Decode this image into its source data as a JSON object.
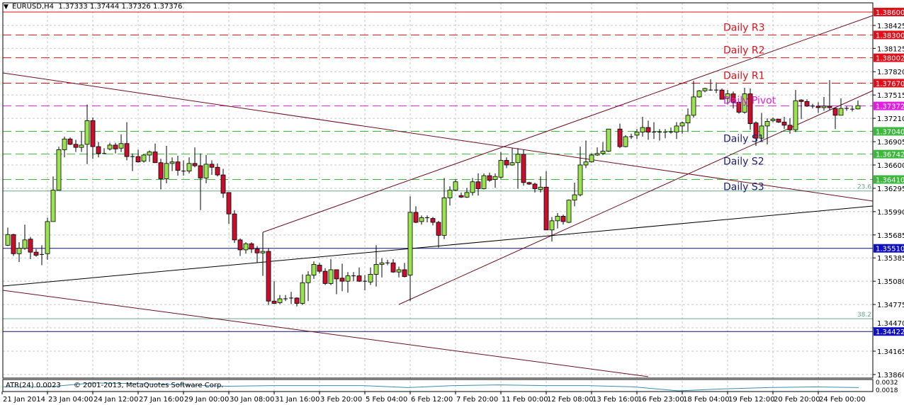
{
  "header": {
    "symbol": "EURUSD,H4",
    "ohlc": "1.37333 1.37444 1.37326 1.37376"
  },
  "indicator": {
    "label": "ATR(24) 0.0023",
    "copyright": "© 2001-2013, MetaQuotes Software Corp.",
    "axis_max": "0.0032",
    "axis_min": "0.0018"
  },
  "colors": {
    "bull": "#9be34f",
    "bear": "#c8102e",
    "resistance": "#e0101a",
    "pivot": "#e020e0",
    "support": "#3cb83c",
    "horizontal": "#1010c0",
    "trendline": "#6b1020"
  },
  "chart_data": {
    "type": "candlestick",
    "title": "EURUSD,H4",
    "ylim": [
      1.3386,
      1.386
    ],
    "grid": true,
    "y_ticks": [
      "1.38425",
      "1.38125",
      "1.37820",
      "1.37515",
      "1.37210",
      "1.36905",
      "1.36600",
      "1.36295",
      "1.35990",
      "1.35685",
      "1.35385",
      "1.35080",
      "1.34775",
      "1.34470",
      "1.34165",
      "1.33860"
    ],
    "x_ticks": [
      "21 Jan 2014",
      "23 Jan 04:00",
      "24 Jan 12:00",
      "27 Jan 16:00",
      "29 Jan 00:00",
      "30 Jan 08:00",
      "31 Jan 16:00",
      "3 Feb 20:00",
      "5 Feb 04:00",
      "6 Feb 12:00",
      "7 Feb 20:00",
      "11 Feb 00:00",
      "12 Feb 08:00",
      "13 Feb 16:00",
      "16 Feb 23:00",
      "18 Feb 04:00",
      "19 Feb 12:00",
      "20 Feb 20:00",
      "24 Feb 00:00"
    ],
    "levels": [
      {
        "price": "1.38600",
        "kind": "resistance",
        "style": "solid"
      },
      {
        "price": "1.38300",
        "kind": "resistance",
        "style": "dashed",
        "label": "Daily R3"
      },
      {
        "price": "1.38002",
        "kind": "resistance",
        "style": "dashed",
        "label": "Daily R2"
      },
      {
        "price": "1.37670",
        "kind": "resistance",
        "style": "dashed",
        "label": "Daily R1"
      },
      {
        "price": "1.37372",
        "kind": "pivot",
        "style": "dashed",
        "label": "Daily Pivot"
      },
      {
        "price": "1.37040",
        "kind": "support",
        "style": "dashed",
        "label": "Daily S1"
      },
      {
        "price": "1.36742",
        "kind": "support",
        "style": "dashed",
        "label": "Daily S2"
      },
      {
        "price": "1.36410",
        "kind": "support",
        "style": "dashed",
        "label": "Daily S3"
      },
      {
        "price": "1.35510",
        "kind": "horizontal",
        "style": "solid"
      },
      {
        "price": "1.34422",
        "kind": "horizontal",
        "style": "solid"
      }
    ],
    "fibo": [
      {
        "label": "23.6",
        "price": 1.3626
      },
      {
        "label": "38.2",
        "price": 1.3459
      }
    ],
    "candles": [
      [
        1.3555,
        1.3578,
        1.3554,
        1.3569
      ],
      [
        1.3569,
        1.357,
        1.3541,
        1.3544
      ],
      [
        1.3544,
        1.3559,
        1.3533,
        1.3551
      ],
      [
        1.3551,
        1.3582,
        1.3549,
        1.3562
      ],
      [
        1.3563,
        1.3566,
        1.3537,
        1.3546
      ],
      [
        1.3546,
        1.355,
        1.354,
        1.3542
      ],
      [
        1.3543,
        1.3555,
        1.3529,
        1.3543
      ],
      [
        1.3544,
        1.3591,
        1.3536,
        1.3586
      ],
      [
        1.3586,
        1.3645,
        1.3586,
        1.3627
      ],
      [
        1.3627,
        1.3684,
        1.3627,
        1.368
      ],
      [
        1.368,
        1.3697,
        1.367,
        1.3694
      ],
      [
        1.3694,
        1.3696,
        1.3686,
        1.3687
      ],
      [
        1.3687,
        1.3693,
        1.3677,
        1.3683
      ],
      [
        1.3683,
        1.3704,
        1.3677,
        1.3686
      ],
      [
        1.3687,
        1.3739,
        1.3661,
        1.3718
      ],
      [
        1.3718,
        1.3722,
        1.3668,
        1.3684
      ],
      [
        1.3684,
        1.369,
        1.367,
        1.3675
      ],
      [
        1.3675,
        1.3682,
        1.3674,
        1.3675
      ],
      [
        1.3681,
        1.3689,
        1.3679,
        1.3686
      ],
      [
        1.3686,
        1.3689,
        1.3675,
        1.3681
      ],
      [
        1.3682,
        1.37,
        1.3677,
        1.3688
      ],
      [
        1.3688,
        1.3716,
        1.3666,
        1.3671
      ],
      [
        1.3671,
        1.3675,
        1.3652,
        1.3671
      ],
      [
        1.3671,
        1.368,
        1.3663,
        1.3664
      ],
      [
        1.3665,
        1.3674,
        1.3663,
        1.3673
      ],
      [
        1.3673,
        1.3679,
        1.3664,
        1.3677
      ],
      [
        1.3677,
        1.3688,
        1.3663,
        1.3663
      ],
      [
        1.3663,
        1.3668,
        1.3628,
        1.3642
      ],
      [
        1.3642,
        1.3685,
        1.3636,
        1.3662
      ],
      [
        1.3662,
        1.367,
        1.3652,
        1.3664
      ],
      [
        1.3664,
        1.3672,
        1.3646,
        1.3653
      ],
      [
        1.3652,
        1.3666,
        1.3646,
        1.3652
      ],
      [
        1.3652,
        1.367,
        1.3649,
        1.3662
      ],
      [
        1.3662,
        1.3683,
        1.3657,
        1.3659
      ],
      [
        1.3659,
        1.3675,
        1.3601,
        1.3643
      ],
      [
        1.3643,
        1.3673,
        1.3636,
        1.3661
      ],
      [
        1.3661,
        1.3666,
        1.3647,
        1.3657
      ],
      [
        1.3657,
        1.3662,
        1.3645,
        1.3647
      ],
      [
        1.3647,
        1.3655,
        1.3617,
        1.3623
      ],
      [
        1.3624,
        1.3624,
        1.3583,
        1.3596
      ],
      [
        1.3596,
        1.3601,
        1.3558,
        1.3562
      ],
      [
        1.3562,
        1.3564,
        1.3541,
        1.3549
      ],
      [
        1.3549,
        1.3559,
        1.3544,
        1.3557
      ],
      [
        1.3557,
        1.3559,
        1.3545,
        1.355
      ],
      [
        1.355,
        1.3554,
        1.3532,
        1.3545
      ],
      [
        1.3545,
        1.3572,
        1.3515,
        1.3547
      ],
      [
        1.3547,
        1.3551,
        1.3477,
        1.3482
      ],
      [
        1.3482,
        1.3508,
        1.3478,
        1.3479
      ],
      [
        1.348,
        1.349,
        1.3478,
        1.3485
      ],
      [
        1.3485,
        1.349,
        1.3482,
        1.3485
      ],
      [
        1.3486,
        1.3494,
        1.3478,
        1.3486
      ],
      [
        1.3486,
        1.3487,
        1.3475,
        1.3479
      ],
      [
        1.3479,
        1.3517,
        1.3477,
        1.3506
      ],
      [
        1.3506,
        1.3521,
        1.3482,
        1.3516
      ],
      [
        1.3516,
        1.3534,
        1.3511,
        1.353
      ],
      [
        1.3529,
        1.3532,
        1.3518,
        1.3521
      ],
      [
        1.3521,
        1.3525,
        1.3503,
        1.3505
      ],
      [
        1.3505,
        1.3537,
        1.3503,
        1.3523
      ],
      [
        1.3523,
        1.3523,
        1.3491,
        1.3511
      ],
      [
        1.3512,
        1.3531,
        1.3495,
        1.3508
      ],
      [
        1.3508,
        1.352,
        1.3493,
        1.3515
      ],
      [
        1.3515,
        1.352,
        1.3508,
        1.3515
      ],
      [
        1.3515,
        1.3526,
        1.3507,
        1.3508
      ],
      [
        1.3508,
        1.3516,
        1.3496,
        1.3508
      ],
      [
        1.3507,
        1.3526,
        1.3503,
        1.3517
      ],
      [
        1.3517,
        1.3555,
        1.3501,
        1.353
      ],
      [
        1.353,
        1.3538,
        1.3513,
        1.3532
      ],
      [
        1.3532,
        1.3536,
        1.3529,
        1.3532
      ],
      [
        1.3532,
        1.3537,
        1.3519,
        1.352
      ],
      [
        1.352,
        1.3527,
        1.3513,
        1.3523
      ],
      [
        1.3523,
        1.3532,
        1.3513,
        1.3514
      ],
      [
        1.3516,
        1.3619,
        1.3482,
        1.3598
      ],
      [
        1.3598,
        1.3606,
        1.3584,
        1.3585
      ],
      [
        1.3586,
        1.3594,
        1.3582,
        1.3591
      ],
      [
        1.3591,
        1.3594,
        1.3585,
        1.3591
      ],
      [
        1.359,
        1.3592,
        1.3581,
        1.3585
      ],
      [
        1.3585,
        1.3587,
        1.3552,
        1.3568
      ],
      [
        1.3568,
        1.3643,
        1.3563,
        1.3617
      ],
      [
        1.3617,
        1.3632,
        1.3607,
        1.3627
      ],
      [
        1.3627,
        1.3641,
        1.3626,
        1.3638
      ],
      [
        1.362,
        1.3624,
        1.3617,
        1.3618
      ],
      [
        1.3618,
        1.363,
        1.3617,
        1.3624
      ],
      [
        1.3624,
        1.3643,
        1.362,
        1.3638
      ],
      [
        1.3638,
        1.3649,
        1.362,
        1.3629
      ],
      [
        1.3629,
        1.3649,
        1.3628,
        1.3646
      ],
      [
        1.3646,
        1.365,
        1.3638,
        1.364
      ],
      [
        1.3641,
        1.3649,
        1.363,
        1.3645
      ],
      [
        1.3644,
        1.3677,
        1.3642,
        1.3666
      ],
      [
        1.3666,
        1.367,
        1.3656,
        1.366
      ],
      [
        1.366,
        1.3682,
        1.3659,
        1.3663
      ],
      [
        1.3663,
        1.3682,
        1.3629,
        1.3674
      ],
      [
        1.3674,
        1.368,
        1.3633,
        1.3637
      ],
      [
        1.3637,
        1.3638,
        1.3634,
        1.3635
      ],
      [
        1.3635,
        1.3637,
        1.3624,
        1.3629
      ],
      [
        1.3628,
        1.3645,
        1.3624,
        1.3631
      ],
      [
        1.3631,
        1.3652,
        1.3575,
        1.3575
      ],
      [
        1.3575,
        1.3592,
        1.356,
        1.3587
      ],
      [
        1.3587,
        1.3597,
        1.3577,
        1.3593
      ],
      [
        1.3593,
        1.3595,
        1.3582,
        1.3586
      ],
      [
        1.3585,
        1.3615,
        1.3584,
        1.3614
      ],
      [
        1.3614,
        1.3637,
        1.3606,
        1.3621
      ],
      [
        1.3621,
        1.3684,
        1.3619,
        1.366
      ],
      [
        1.366,
        1.3692,
        1.3656,
        1.3664
      ],
      [
        1.3664,
        1.3675,
        1.3663,
        1.3673
      ],
      [
        1.3673,
        1.3683,
        1.3672,
        1.3675
      ],
      [
        1.3675,
        1.369,
        1.3673,
        1.3678
      ],
      [
        1.3678,
        1.3707,
        1.3677,
        1.3707
      ],
      [
        1.3707,
        1.3714,
        1.3682,
        1.3684
      ],
      [
        1.3684,
        1.3699,
        1.3683,
        1.3697
      ],
      [
        1.3697,
        1.3701,
        1.3694,
        1.3697
      ],
      [
        1.3699,
        1.3707,
        1.3694,
        1.3703
      ],
      [
        1.3703,
        1.3723,
        1.3697,
        1.3709
      ],
      [
        1.3709,
        1.3718,
        1.3693,
        1.3703
      ],
      [
        1.3703,
        1.3716,
        1.3694,
        1.3703
      ],
      [
        1.3703,
        1.3707,
        1.3692,
        1.3703
      ],
      [
        1.3703,
        1.3707,
        1.3695,
        1.3703
      ],
      [
        1.3703,
        1.3709,
        1.3701,
        1.3703
      ],
      [
        1.3703,
        1.3716,
        1.3694,
        1.3711
      ],
      [
        1.3711,
        1.3717,
        1.3701,
        1.3715
      ],
      [
        1.3715,
        1.3734,
        1.3703,
        1.3725
      ],
      [
        1.3725,
        1.377,
        1.3722,
        1.3749
      ],
      [
        1.3749,
        1.3758,
        1.3748,
        1.3757
      ],
      [
        1.3757,
        1.3761,
        1.3755,
        1.376
      ],
      [
        1.3758,
        1.3772,
        1.3757,
        1.3758
      ],
      [
        1.3758,
        1.3768,
        1.3754,
        1.3758
      ],
      [
        1.3758,
        1.376,
        1.3746,
        1.3746
      ],
      [
        1.3747,
        1.3758,
        1.3739,
        1.3753
      ],
      [
        1.3753,
        1.3756,
        1.3734,
        1.3742
      ],
      [
        1.3742,
        1.3743,
        1.3727,
        1.3729
      ],
      [
        1.3729,
        1.3761,
        1.3727,
        1.3753
      ],
      [
        1.3753,
        1.376,
        1.3706,
        1.3714
      ],
      [
        1.3715,
        1.3717,
        1.3685,
        1.3695
      ],
      [
        1.3695,
        1.3728,
        1.3693,
        1.3711
      ],
      [
        1.3711,
        1.3721,
        1.3687,
        1.3717
      ],
      [
        1.3718,
        1.3722,
        1.3716,
        1.372
      ],
      [
        1.372,
        1.372,
        1.3715,
        1.3716
      ],
      [
        1.3716,
        1.3723,
        1.3707,
        1.3712
      ],
      [
        1.3712,
        1.3721,
        1.3701,
        1.3706
      ],
      [
        1.3706,
        1.3758,
        1.3703,
        1.3744
      ],
      [
        1.3745,
        1.3746,
        1.372,
        1.3743
      ],
      [
        1.3743,
        1.3746,
        1.3736,
        1.3737
      ],
      [
        1.3737,
        1.374,
        1.3734,
        1.3737
      ],
      [
        1.3737,
        1.3742,
        1.3728,
        1.3735
      ],
      [
        1.3735,
        1.3749,
        1.3731,
        1.3737
      ],
      [
        1.3737,
        1.3771,
        1.3732,
        1.3735
      ],
      [
        1.3734,
        1.3735,
        1.3707,
        1.3725
      ],
      [
        1.3725,
        1.3747,
        1.3725,
        1.3734
      ],
      [
        1.3734,
        1.3737,
        1.3731,
        1.3734
      ],
      [
        1.3733,
        1.3737,
        1.373,
        1.3733
      ],
      [
        1.37333,
        1.37444,
        1.37326,
        1.37376
      ]
    ],
    "atr": [
      0.0024,
      0.0024,
      0.003,
      0.0029,
      0.0027,
      0.0025,
      0.0026,
      0.0026,
      0.0026,
      0.0023,
      0.0026,
      0.0027,
      0.0026,
      0.0026,
      0.0024,
      0.0018,
      0.0021,
      0.0023,
      0.0024,
      0.0023
    ]
  }
}
